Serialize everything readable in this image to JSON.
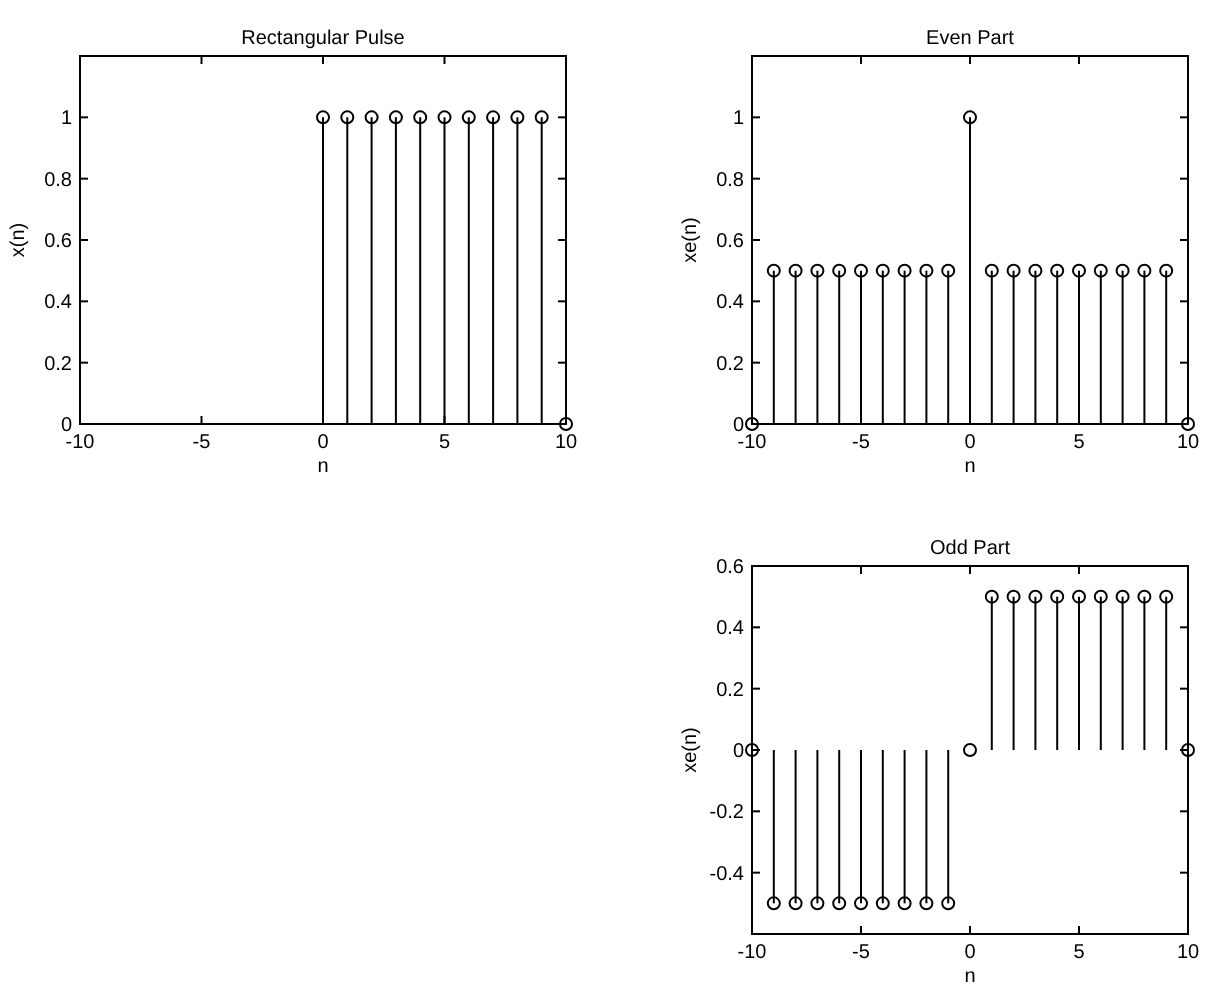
{
  "chart_data": [
    {
      "type": "lollipop",
      "title": "Rectangular Pulse",
      "xlabel": "n",
      "ylabel": "x(n)",
      "x": [
        0,
        1,
        2,
        3,
        4,
        5,
        6,
        7,
        8,
        9,
        10
      ],
      "values": [
        1,
        1,
        1,
        1,
        1,
        1,
        1,
        1,
        1,
        1,
        0
      ],
      "color": "#000000",
      "marker": "circle",
      "xlim": [
        -10,
        10
      ],
      "xticks": [
        -10,
        -5,
        0,
        5,
        10
      ],
      "ylim": [
        0,
        1.2
      ],
      "yticks": [
        0,
        0.2,
        0.4,
        0.6,
        0.8,
        1
      ]
    },
    {
      "type": "lollipop",
      "title": "Even Part",
      "xlabel": "n",
      "ylabel": "xe(n)",
      "x": [
        -10,
        -9,
        -8,
        -7,
        -6,
        -5,
        -4,
        -3,
        -2,
        -1,
        0,
        1,
        2,
        3,
        4,
        5,
        6,
        7,
        8,
        9,
        10
      ],
      "values": [
        0,
        0.5,
        0.5,
        0.5,
        0.5,
        0.5,
        0.5,
        0.5,
        0.5,
        0.5,
        1,
        0.5,
        0.5,
        0.5,
        0.5,
        0.5,
        0.5,
        0.5,
        0.5,
        0.5,
        0
      ],
      "color": "#000000",
      "marker": "circle",
      "xlim": [
        -10,
        10
      ],
      "xticks": [
        -10,
        -5,
        0,
        5,
        10
      ],
      "ylim": [
        0,
        1.2
      ],
      "yticks": [
        0,
        0.2,
        0.4,
        0.6,
        0.8,
        1
      ]
    },
    {
      "type": "lollipop",
      "title": "Odd Part",
      "xlabel": "n",
      "ylabel": "xe(n)",
      "x": [
        -10,
        -9,
        -8,
        -7,
        -6,
        -5,
        -4,
        -3,
        -2,
        -1,
        0,
        1,
        2,
        3,
        4,
        5,
        6,
        7,
        8,
        9,
        10
      ],
      "values": [
        0,
        -0.5,
        -0.5,
        -0.5,
        -0.5,
        -0.5,
        -0.5,
        -0.5,
        -0.5,
        -0.5,
        0,
        0.5,
        0.5,
        0.5,
        0.5,
        0.5,
        0.5,
        0.5,
        0.5,
        0.5,
        0
      ],
      "color": "#000000",
      "marker": "circle",
      "xlim": [
        -10,
        10
      ],
      "xticks": [
        -10,
        -5,
        0,
        5,
        10
      ],
      "ylim": [
        -0.6,
        0.6
      ],
      "yticks": [
        -0.4,
        -0.2,
        0,
        0.2,
        0.4,
        0.6
      ]
    }
  ]
}
